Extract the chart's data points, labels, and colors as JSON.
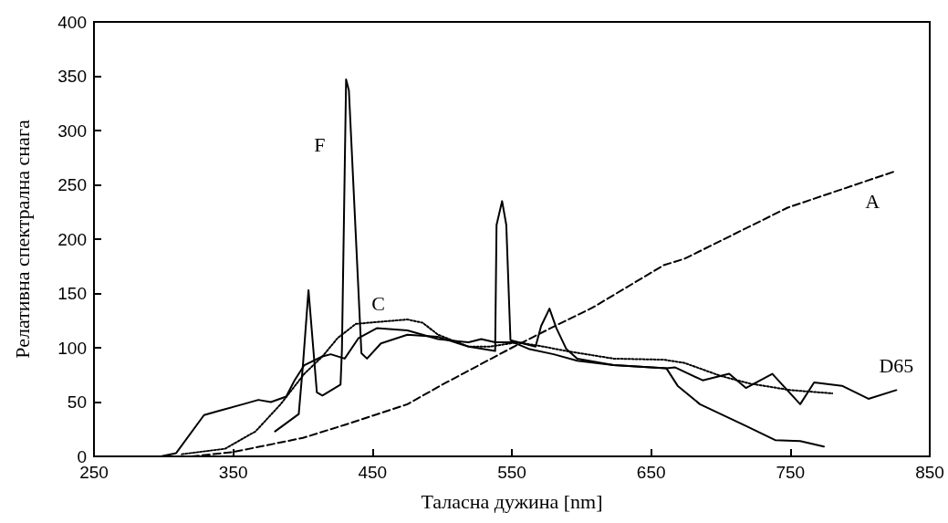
{
  "chart_data": {
    "type": "line",
    "xlabel": "Таласна дужина [nm]",
    "ylabel": "Релативна спектрална снага",
    "xlim": [
      250,
      850
    ],
    "xticks": [
      250,
      350,
      450,
      550,
      650,
      750,
      850
    ],
    "ylim": [
      0,
      400
    ],
    "yticks": [
      0,
      50,
      100,
      150,
      200,
      250,
      300,
      350,
      400
    ],
    "grid": false,
    "marker": "none",
    "series": [
      {
        "name": "D65",
        "color": "#000000",
        "line_style": "solid",
        "x": [
          298,
          309,
          329,
          340,
          357,
          368,
          377,
          388,
          394,
          401,
          414,
          420,
          430,
          440,
          453,
          475,
          497,
          519,
          528,
          538,
          551,
          562,
          580,
          597,
          623,
          661,
          667,
          687,
          706,
          718,
          737,
          757,
          767,
          787,
          806,
          826
        ],
        "values": [
          0,
          3,
          38,
          42,
          48,
          52,
          50,
          55,
          70,
          84,
          92,
          94,
          90,
          109,
          118,
          116,
          108,
          105,
          108,
          105,
          105,
          99,
          94,
          88,
          84,
          81,
          82,
          70,
          76,
          63,
          76,
          48,
          68,
          65,
          53,
          61
        ]
      },
      {
        "name": "F",
        "color": "#000000",
        "line_style": "solid",
        "x": [
          380,
          397,
          400,
          404,
          410,
          414,
          427,
          428,
          431,
          433,
          442,
          446,
          456,
          475,
          497,
          519,
          538,
          539,
          543,
          546,
          549,
          567,
          571,
          577,
          582,
          589,
          597,
          623,
          661,
          669,
          685,
          718,
          739,
          757,
          774
        ],
        "values": [
          23,
          39,
          84,
          153,
          59,
          56,
          66,
          98,
          347,
          337,
          95,
          90,
          104,
          112,
          110,
          101,
          97,
          213,
          235,
          213,
          107,
          101,
          120,
          136,
          118,
          99,
          90,
          84,
          81,
          65,
          48,
          28,
          15,
          14,
          9
        ]
      },
      {
        "name": "C",
        "color": "#000000",
        "line_style": "dotted",
        "x": [
          313,
          344,
          366,
          384,
          401,
          414,
          425,
          438,
          456,
          475,
          486,
          497,
          519,
          534,
          554,
          573,
          589,
          623,
          659,
          674,
          700,
          721,
          750,
          780
        ],
        "values": [
          2,
          7,
          23,
          48,
          76,
          92,
          109,
          122,
          124,
          126,
          123,
          112,
          101,
          101,
          105,
          101,
          97,
          90,
          89,
          86,
          74,
          67,
          61,
          58
        ]
      },
      {
        "name": "A",
        "color": "#000000",
        "line_style": "dashed",
        "x": [
          320,
          350,
          400,
          430,
          475,
          500,
          550,
          584,
          608,
          659,
          674,
          748,
          824
        ],
        "values": [
          0,
          4,
          17,
          29,
          48,
          66,
          100,
          122,
          137,
          176,
          182,
          229,
          262
        ]
      }
    ]
  }
}
